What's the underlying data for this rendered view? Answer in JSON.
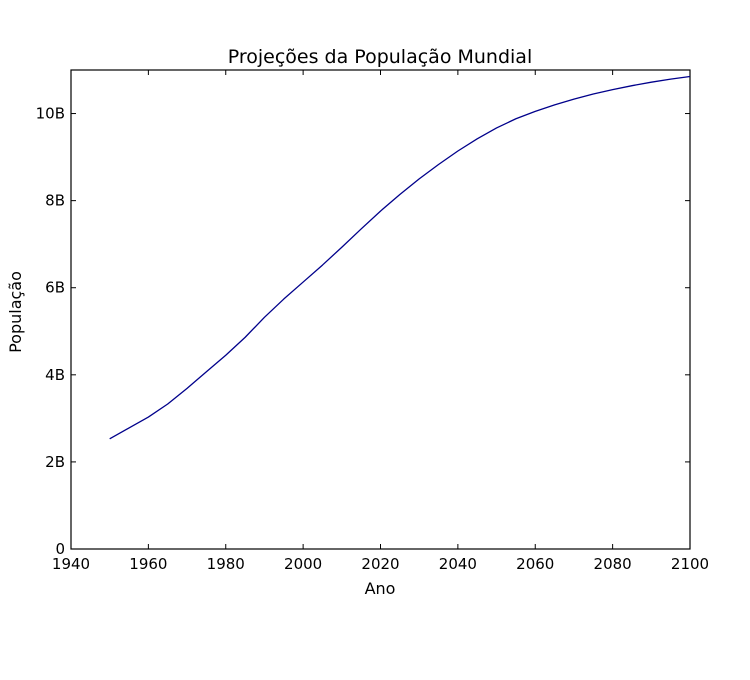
{
  "chart_data": {
    "type": "line",
    "title": "Projeções da População Mundial",
    "xlabel": "Ano",
    "ylabel": "População",
    "xlim": [
      1940,
      2100
    ],
    "ylim": [
      0,
      11
    ],
    "x_ticks": [
      1940,
      1960,
      1980,
      2000,
      2020,
      2040,
      2060,
      2080,
      2100
    ],
    "y_ticks": [
      0,
      2,
      4,
      6,
      8,
      10
    ],
    "y_tick_labels": [
      "0",
      "2B",
      "4B",
      "6B",
      "8B",
      "10B"
    ],
    "grid": false,
    "line_color": "#00008b",
    "series": [
      {
        "x": [
          1950,
          1955,
          1960,
          1965,
          1970,
          1975,
          1980,
          1985,
          1990,
          1995,
          2000,
          2005,
          2010,
          2015,
          2020,
          2025,
          2030,
          2035,
          2040,
          2045,
          2050,
          2055,
          2060,
          2065,
          2070,
          2075,
          2080,
          2085,
          2090,
          2095,
          2100
        ],
        "values": [
          2.53,
          2.78,
          3.03,
          3.33,
          3.69,
          4.07,
          4.45,
          4.86,
          5.32,
          5.74,
          6.13,
          6.52,
          6.93,
          7.35,
          7.76,
          8.14,
          8.5,
          8.83,
          9.14,
          9.42,
          9.67,
          9.88,
          10.05,
          10.2,
          10.33,
          10.45,
          10.55,
          10.64,
          10.72,
          10.79,
          10.85
        ]
      }
    ]
  }
}
